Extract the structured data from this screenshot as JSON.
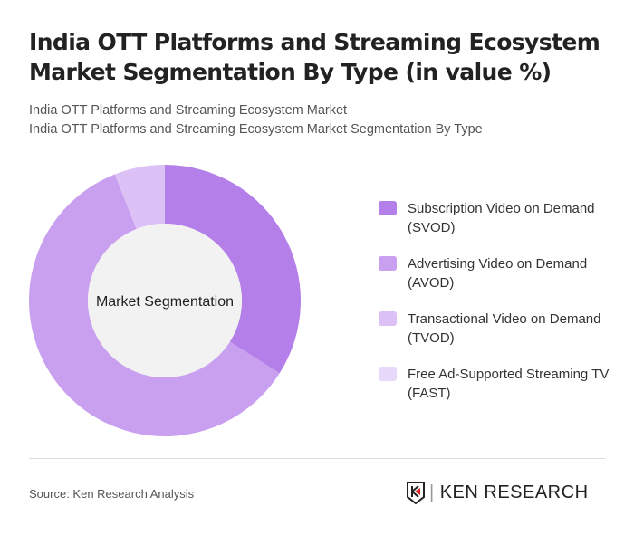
{
  "title": "India OTT Platforms and Streaming Ecosystem Market Segmentation By Type (in value %)",
  "subtitle1": "India OTT Platforms and Streaming Ecosystem Market",
  "subtitle2": "India OTT Platforms and Streaming Ecosystem Market Segmentation By Type",
  "source": "Source: Ken Research Analysis",
  "logo_text": "KEN RESEARCH",
  "chart_data": {
    "type": "pie",
    "style": "donut",
    "center_label": "Market Segmentation",
    "categories": [
      "Subscription Video on Demand (SVOD)",
      "Advertising Video on Demand (AVOD)",
      "Transactional Video on Demand (TVOD)",
      "Free Ad-Supported Streaming TV (FAST)"
    ],
    "values": [
      34,
      60,
      6,
      0
    ],
    "colors": [
      "#b57fea",
      "#c9a0ef",
      "#dcc1f6",
      "#e8d8f9"
    ],
    "legend_position": "right"
  }
}
